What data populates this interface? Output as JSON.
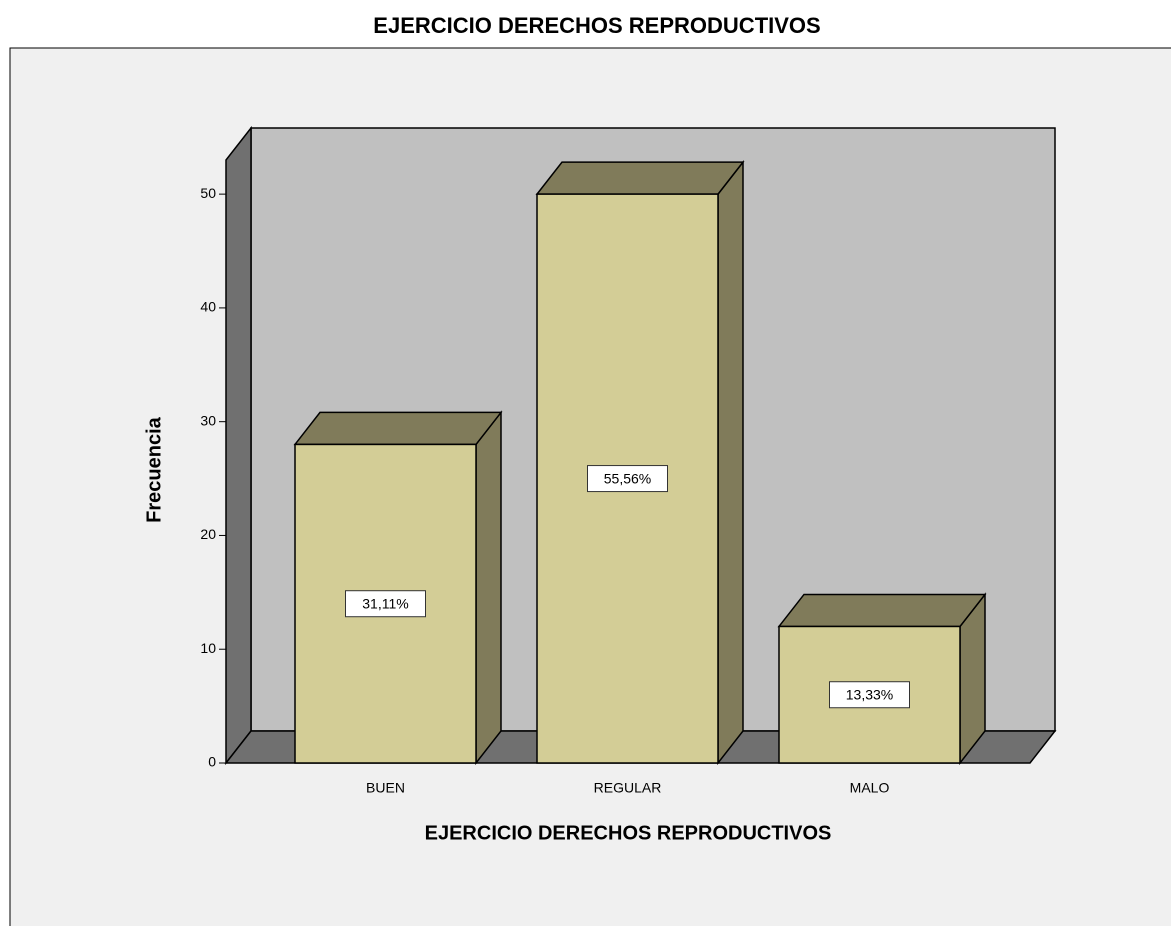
{
  "chart_data": {
    "type": "bar3d",
    "title": "EJERCICIO DERECHOS REPRODUCTIVOS",
    "x_label": "EJERCICIO DERECHOS REPRODUCTIVOS",
    "y_label": "Frecuencia",
    "categories": [
      "BUEN",
      "REGULAR",
      "MALO"
    ],
    "values": [
      28,
      50,
      12
    ],
    "percent_labels": [
      "31,11%",
      "55,56%",
      "13,33%"
    ],
    "color": "#d3cd96",
    "ylim": [
      0,
      53
    ],
    "yticks": [
      0,
      10,
      20,
      30,
      40,
      50
    ]
  }
}
